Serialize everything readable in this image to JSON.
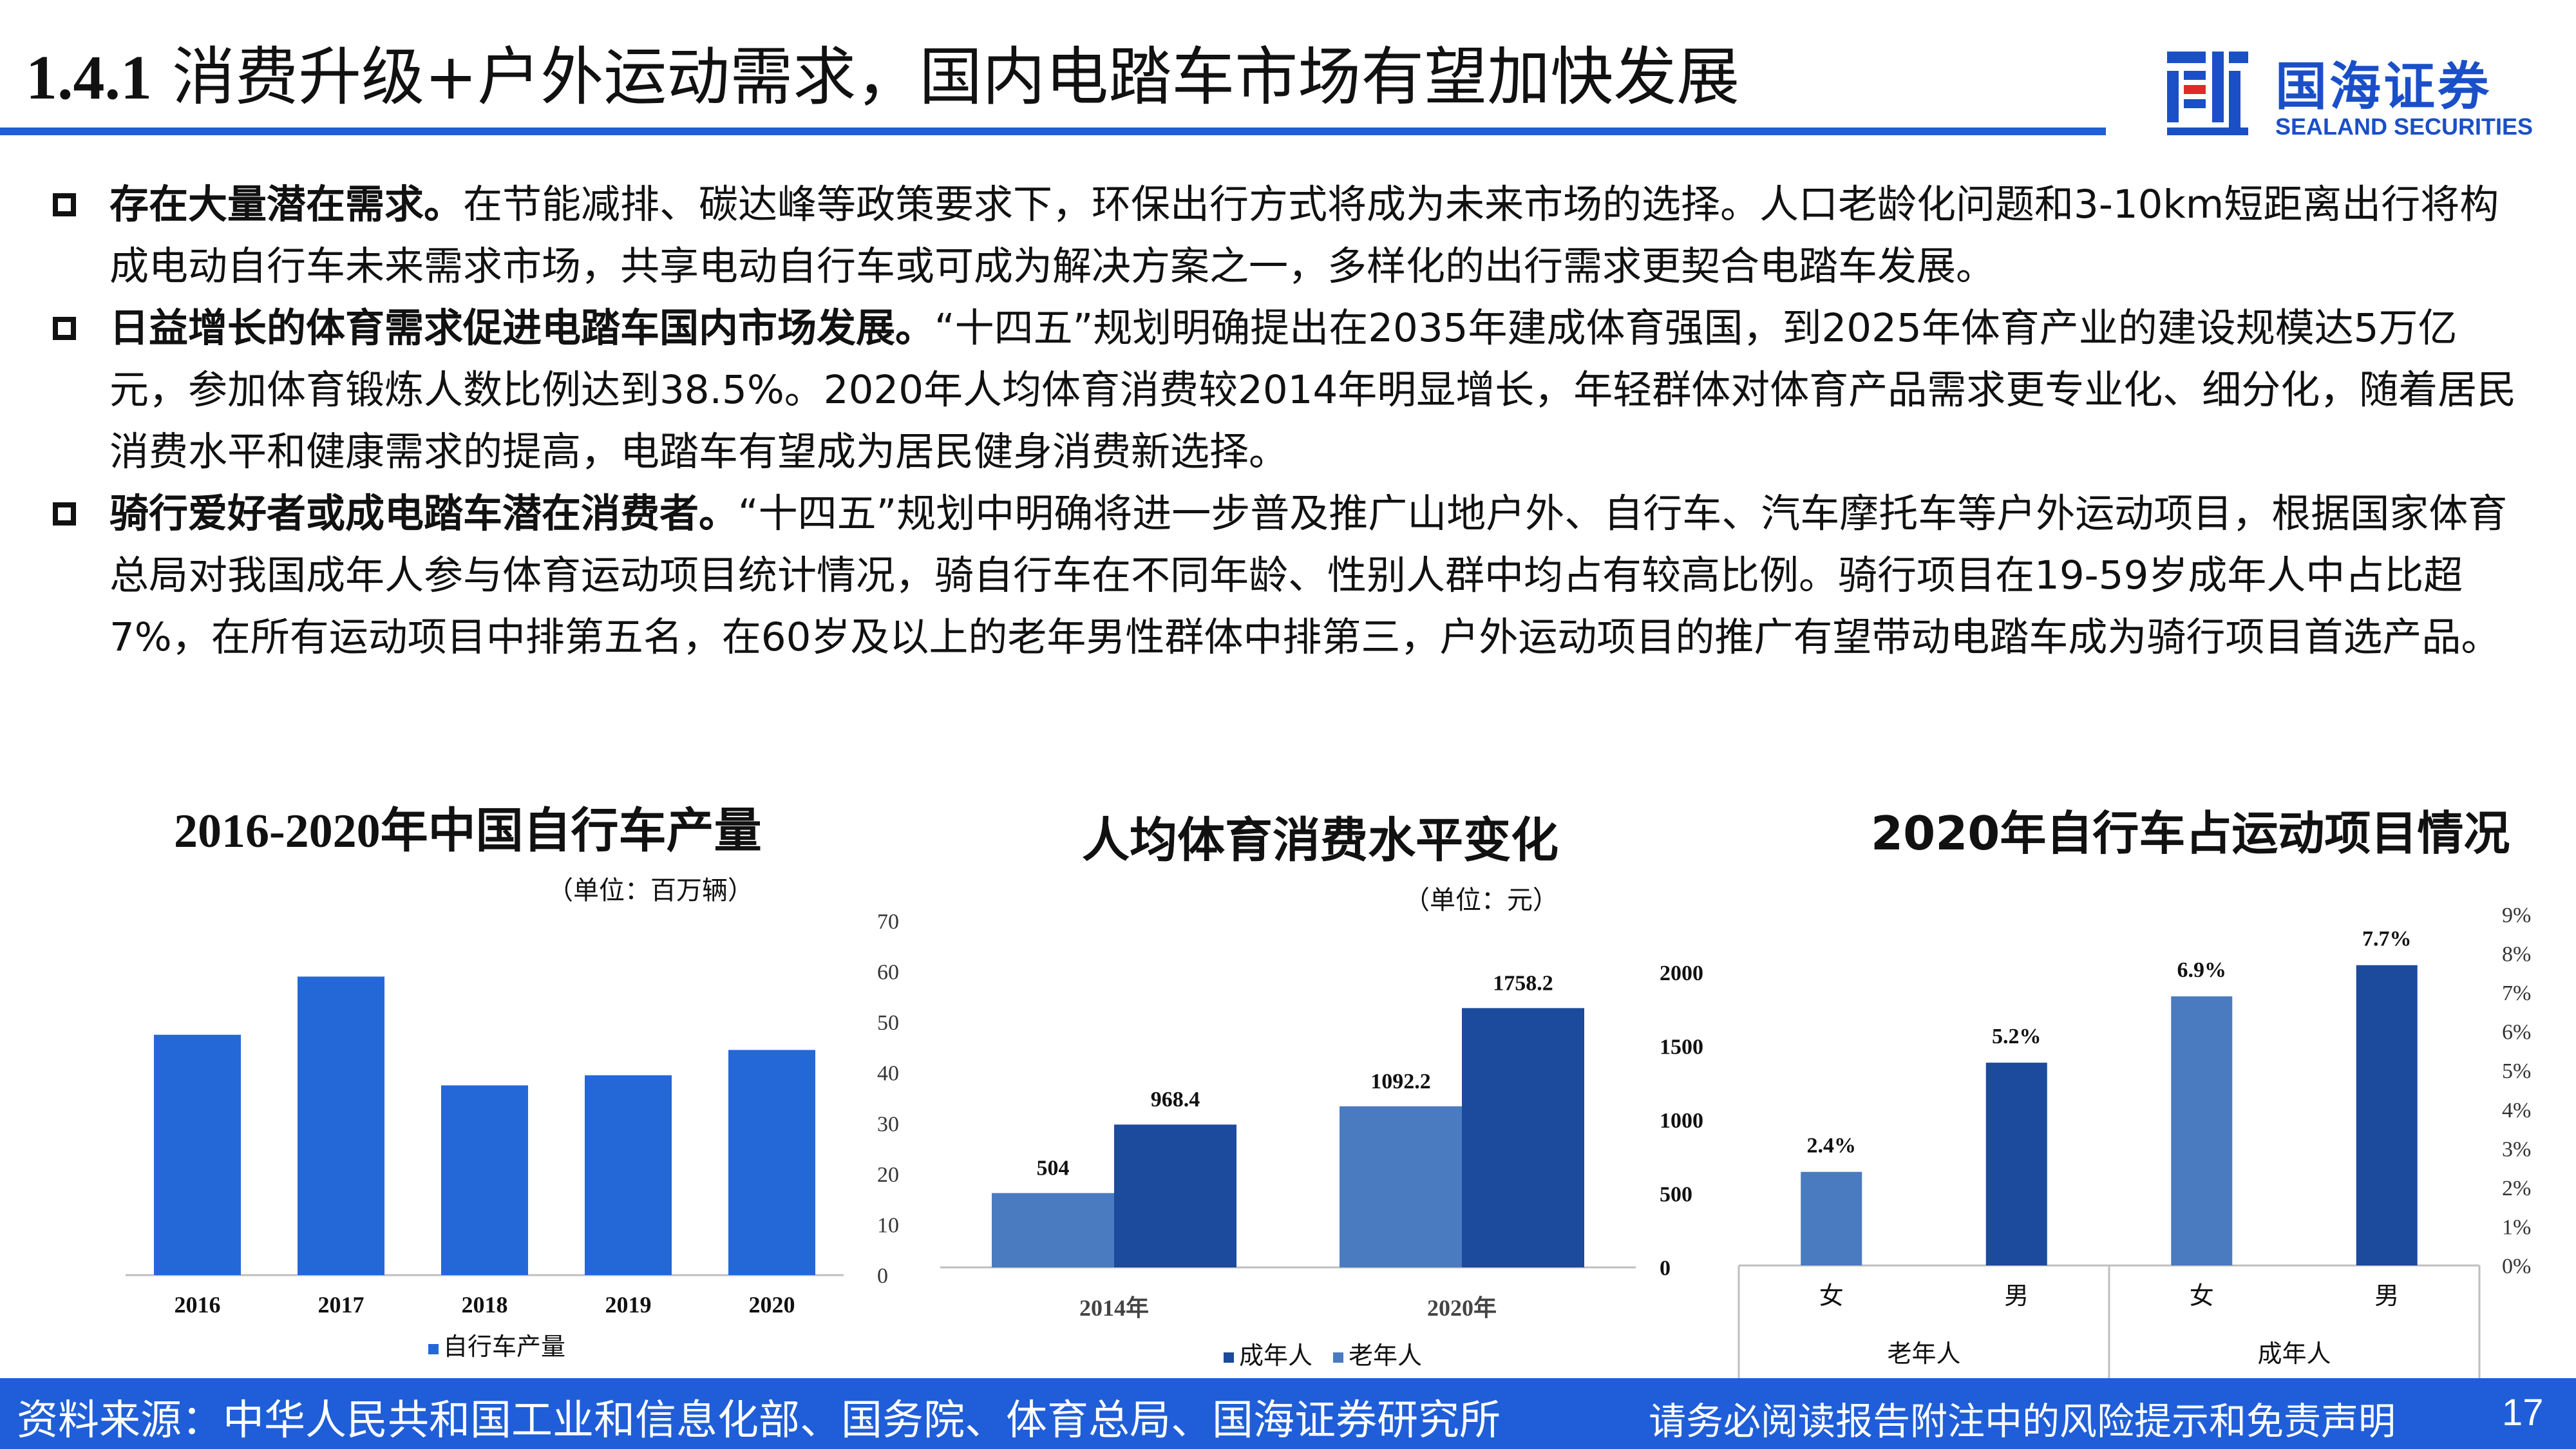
{
  "header": {
    "section_number": "1.4.1",
    "title": "消费升级+户外运动需求，国内电踏车市场有望加快发展"
  },
  "logo": {
    "name_cn": "国海证券",
    "name_en": "SEALAND SECURITIES"
  },
  "bullets": [
    {
      "lead": "存在大量潜在需求。",
      "text": "在节能减排、碳达峰等政策要求下，环保出行方式将成为未来市场的选择。人口老龄化问题和3-10km短距离出行将构成电动自行车未来需求市场，共享电动自行车或可成为解决方案之一，多样化的出行需求更契合电踏车发展。"
    },
    {
      "lead": "日益增长的体育需求促进电踏车国内市场发展。",
      "text": "“十四五”规划明确提出在2035年建成体育强国，到2025年体育产业的建设规模达5万亿元，参加体育锻炼人数比例达到38.5%。2020年人均体育消费较2014年明显增长，年轻群体对体育产品需求更专业化、细分化，随着居民消费水平和健康需求的提高，电踏车有望成为居民健身消费新选择。"
    },
    {
      "lead": "骑行爱好者或成电踏车潜在消费者。",
      "text": "“十四五”规划中明确将进一步普及推广山地户外、自行车、汽车摩托车等户外运动项目，根据国家体育总局对我国成年人参与体育运动项目统计情况，骑自行车在不同年龄、性别人群中均占有较高比例。骑行项目在19-59岁成年人中占比超7%，在所有运动项目中排第五名，在60岁及以上的老年男性群体中排第三，户外运动项目的推广有望带动电踏车成为骑行项目首选产品。"
    }
  ],
  "chart_data": [
    {
      "type": "bar",
      "title": "2016-2020年中国自行车产量",
      "unit": "（单位：百万辆）",
      "categories": [
        "2016",
        "2017",
        "2018",
        "2019",
        "2020"
      ],
      "series": [
        {
          "name": "自行车产量",
          "values": [
            47.5,
            59.0,
            37.5,
            39.5,
            44.5
          ]
        }
      ],
      "ylim": [
        0,
        70
      ],
      "yticks": [
        "0",
        "10",
        "20",
        "30",
        "40",
        "50",
        "60",
        "70"
      ],
      "y_axis_side": "right",
      "grid": false,
      "legend": "bottom",
      "colors": [
        "#2468d8"
      ]
    },
    {
      "type": "bar",
      "title": "人均体育消费水平变化",
      "unit": "（单位：元）",
      "categories": [
        "2014年",
        "2020年"
      ],
      "series": [
        {
          "name": "成年人",
          "values": [
            968.4,
            1758.2
          ],
          "labels": [
            "968.4",
            "1758.2"
          ]
        },
        {
          "name": "老年人",
          "values": [
            504,
            1092.2
          ],
          "labels": [
            "504",
            "1092.2"
          ]
        }
      ],
      "ylim": [
        0,
        2000
      ],
      "yticks": [
        "0",
        "500",
        "1000",
        "1500",
        "2000"
      ],
      "y_axis_side": "right",
      "grid": false,
      "legend": "bottom",
      "colors": [
        "#1c4a9c",
        "#4a7bc0"
      ]
    },
    {
      "type": "bar",
      "title": "2020年自行车占运动项目情况",
      "group_labels": [
        "老年人",
        "成年人"
      ],
      "categories": [
        "女",
        "男",
        "女",
        "男"
      ],
      "values": [
        2.4,
        5.2,
        6.9,
        7.7
      ],
      "labels": [
        "2.4%",
        "5.2%",
        "6.9%",
        "7.7%"
      ],
      "ylim": [
        0,
        9
      ],
      "yticks": [
        "0%",
        "1%",
        "2%",
        "3%",
        "4%",
        "5%",
        "6%",
        "7%",
        "8%",
        "9%"
      ],
      "y_axis_side": "right",
      "grid": false,
      "colors": [
        "#4a7bc0",
        "#1c4a9c",
        "#4a7bc0",
        "#1c4a9c"
      ]
    }
  ],
  "footer": {
    "source": "资料来源：中华人民共和国工业和信息化部、国务院、体育总局、国海证券研究所",
    "disclaimer": "请务必阅读报告附注中的风险提示和免责声明",
    "page": "17"
  }
}
